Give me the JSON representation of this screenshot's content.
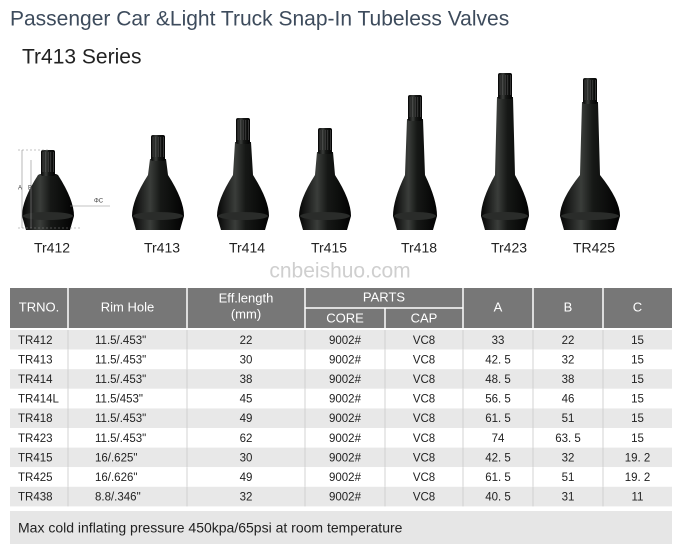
{
  "header": {
    "title": "Passenger Car &Light Truck Snap-In Tubeless Valves",
    "subtitle": "Tr413 Series"
  },
  "diagram_labels": [
    "A",
    "B",
    "ΦC"
  ],
  "valves": [
    "Tr412",
    "Tr413",
    "Tr414",
    "Tr415",
    "Tr418",
    "Tr423",
    "TR425"
  ],
  "watermark": "cnbeishuo.com",
  "table": {
    "headers": {
      "trno": "TRNO.",
      "rim_hole": "Rim Hole",
      "eff_length": [
        "Eff.length",
        "(mm)"
      ],
      "parts": "PARTS",
      "core": "CORE",
      "cap": "CAP",
      "a": "A",
      "b": "B",
      "c": "C"
    },
    "rows": [
      [
        "TR412",
        "11.5/.453\"",
        "22",
        "9002#",
        "VC8",
        "33",
        "22",
        "15"
      ],
      [
        "TR413",
        "11.5/.453\"",
        "30",
        "9002#",
        "VC8",
        "42. 5",
        "32",
        "15"
      ],
      [
        "TR414",
        "11.5/.453\"",
        "38",
        "9002#",
        "VC8",
        "48. 5",
        "38",
        "15"
      ],
      [
        "TR414L",
        "11.5/453\"",
        "45",
        "9002#",
        "VC8",
        "56. 5",
        "46",
        "15"
      ],
      [
        "TR418",
        "11.5/.453\"",
        "49",
        "9002#",
        "VC8",
        "61. 5",
        "51",
        "15"
      ],
      [
        "TR423",
        "11.5/.453\"",
        "62",
        "9002#",
        "VC8",
        "74",
        "63. 5",
        "15"
      ],
      [
        "TR415",
        "16/.625\"",
        "30",
        "9002#",
        "VC8",
        "42. 5",
        "32",
        "19. 2"
      ],
      [
        "TR425",
        "16/.626\"",
        "49",
        "9002#",
        "VC8",
        "61. 5",
        "51",
        "19. 2"
      ],
      [
        "TR438",
        "8.8/.346\"",
        "32",
        "9002#",
        "VC8",
        "40. 5",
        "31",
        "11"
      ]
    ]
  },
  "footer": "Max cold inflating pressure 450kpa/65psi at room temperature"
}
